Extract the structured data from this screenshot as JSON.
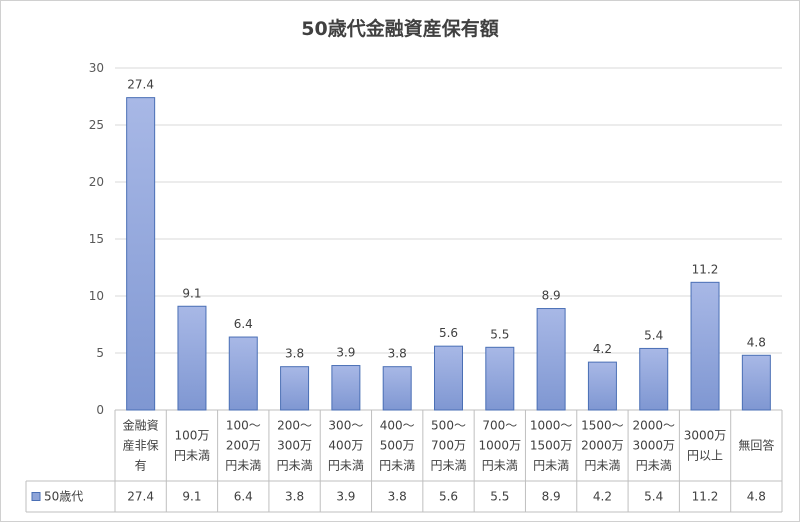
{
  "chart_data": {
    "type": "bar",
    "title": "50歳代金融資産保有額",
    "categories": [
      [
        "金融資",
        "産非保",
        "有"
      ],
      [
        "100万",
        "円未満"
      ],
      [
        "100～",
        "200万",
        "円未満"
      ],
      [
        "200～",
        "300万",
        "円未満"
      ],
      [
        "300～",
        "400万",
        "円未満"
      ],
      [
        "400～",
        "500万",
        "円未満"
      ],
      [
        "500～",
        "700万",
        "円未満"
      ],
      [
        "700～",
        "1000万",
        "円未満"
      ],
      [
        "1000～",
        "1500万",
        "円未満"
      ],
      [
        "1500～",
        "2000万",
        "円未満"
      ],
      [
        "2000～",
        "3000万",
        "円未満"
      ],
      [
        "3000万",
        "円以上"
      ],
      [
        "無回答"
      ]
    ],
    "series": [
      {
        "name": "50歳代",
        "values": [
          27.4,
          9.1,
          6.4,
          3.8,
          3.9,
          3.8,
          5.6,
          5.5,
          8.9,
          4.2,
          5.4,
          11.2,
          4.8
        ],
        "labels": [
          "27.4",
          "9.1",
          "6.4",
          "3.8",
          "3.9",
          "3.8",
          "5.6",
          "5.5",
          "8.9",
          "4.2",
          "5.4",
          "11.2",
          "4.8"
        ]
      }
    ],
    "ylim": [
      0,
      30
    ],
    "yticks": [
      0,
      5,
      10,
      15,
      20,
      25,
      30
    ],
    "grid": true,
    "data_table": true,
    "bar_color": "#8ea4d8",
    "bar_border": "#4a6fb5"
  }
}
